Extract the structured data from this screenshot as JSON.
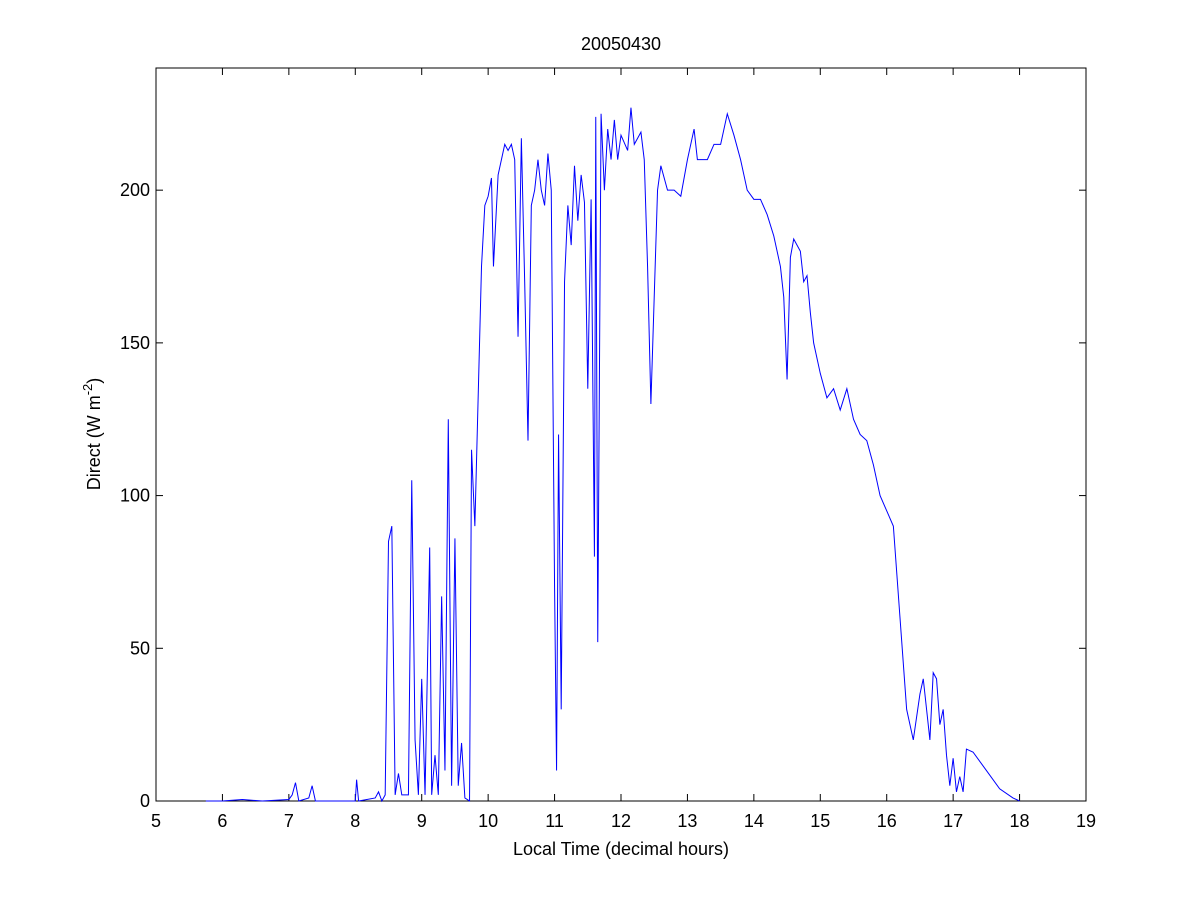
{
  "chart_data": {
    "type": "line",
    "title": "20050430",
    "xlabel": "Local Time (decimal hours)",
    "ylabel": [
      "Direct (W m",
      "-2",
      ")"
    ],
    "xlim": [
      5,
      19
    ],
    "xticks": [
      5,
      6,
      7,
      8,
      9,
      10,
      11,
      12,
      13,
      14,
      15,
      16,
      17,
      18,
      19
    ],
    "ylim": [
      0,
      240
    ],
    "yticks": [
      0,
      50,
      100,
      150,
      200
    ],
    "series": [
      {
        "color": "#0000ff",
        "x": [
          5.75,
          6.0,
          6.3,
          6.6,
          7.0,
          7.05,
          7.1,
          7.15,
          7.3,
          7.35,
          7.4,
          8.0,
          8.02,
          8.05,
          8.3,
          8.35,
          8.4,
          8.45,
          8.5,
          8.55,
          8.6,
          8.65,
          8.7,
          8.8,
          8.85,
          8.9,
          8.95,
          9.0,
          9.05,
          9.12,
          9.15,
          9.2,
          9.25,
          9.3,
          9.35,
          9.4,
          9.45,
          9.5,
          9.55,
          9.6,
          9.65,
          9.72,
          9.75,
          9.8,
          9.9,
          9.95,
          10.0,
          10.05,
          10.08,
          10.15,
          10.25,
          10.3,
          10.35,
          10.4,
          10.45,
          10.5,
          10.55,
          10.6,
          10.65,
          10.7,
          10.75,
          10.8,
          10.85,
          10.9,
          10.95,
          11.0,
          11.03,
          11.06,
          11.1,
          11.15,
          11.2,
          11.25,
          11.3,
          11.35,
          11.4,
          11.45,
          11.5,
          11.55,
          11.6,
          11.62,
          11.65,
          11.7,
          11.75,
          11.8,
          11.85,
          11.9,
          11.95,
          12.0,
          12.1,
          12.15,
          12.2,
          12.3,
          12.35,
          12.4,
          12.45,
          12.5,
          12.55,
          12.6,
          12.7,
          12.8,
          12.9,
          13.0,
          13.1,
          13.15,
          13.3,
          13.4,
          13.5,
          13.6,
          13.7,
          13.8,
          13.9,
          14.0,
          14.1,
          14.2,
          14.3,
          14.4,
          14.45,
          14.5,
          14.55,
          14.6,
          14.7,
          14.75,
          14.8,
          14.85,
          14.9,
          15.0,
          15.1,
          15.2,
          15.3,
          15.4,
          15.5,
          15.6,
          15.7,
          15.8,
          15.9,
          16.0,
          16.1,
          16.2,
          16.3,
          16.4,
          16.5,
          16.55,
          16.6,
          16.65,
          16.7,
          16.75,
          16.8,
          16.85,
          16.9,
          16.95,
          17.0,
          17.05,
          17.1,
          17.15,
          17.2,
          17.3,
          17.5,
          17.7,
          17.9,
          18.0
        ],
        "values": [
          0,
          0,
          0.5,
          0,
          0.5,
          2,
          6,
          0,
          1,
          5,
          0,
          0,
          7,
          0,
          1,
          3,
          0,
          2,
          85,
          90,
          2,
          9,
          2,
          2,
          105,
          20,
          2,
          40,
          2,
          83,
          2,
          15,
          2,
          67,
          10,
          125,
          5,
          86,
          5,
          19,
          1,
          0,
          115,
          90,
          175,
          195,
          198,
          204,
          175,
          205,
          215,
          213,
          215,
          210,
          152,
          217,
          170,
          118,
          195,
          200,
          210,
          200,
          195,
          212,
          200,
          70,
          10,
          120,
          30,
          170,
          195,
          182,
          208,
          190,
          205,
          196,
          135,
          197,
          80,
          224,
          52,
          225,
          200,
          220,
          210,
          223,
          210,
          218,
          213,
          227,
          215,
          219,
          210,
          175,
          130,
          165,
          200,
          208,
          200,
          200,
          198,
          210,
          220,
          210,
          210,
          215,
          215,
          225,
          218,
          210,
          200,
          197,
          197,
          192,
          185,
          175,
          165,
          138,
          178,
          184,
          180,
          170,
          172,
          160,
          150,
          140,
          132,
          135,
          128,
          135,
          125,
          120,
          118,
          110,
          100,
          95,
          90,
          60,
          30,
          20,
          35,
          40,
          30,
          20,
          42,
          40,
          25,
          30,
          15,
          5,
          14,
          3,
          8,
          3,
          17,
          16,
          10,
          4,
          1,
          0
        ]
      }
    ]
  }
}
